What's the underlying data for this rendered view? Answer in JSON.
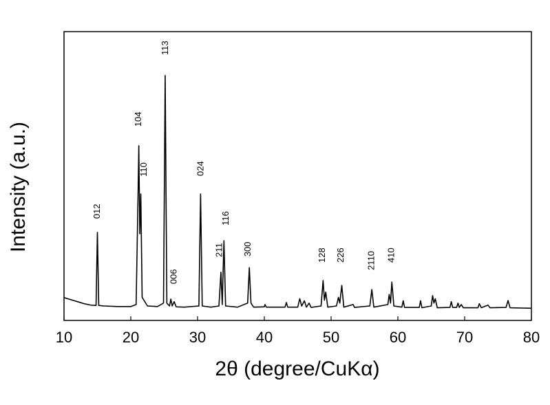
{
  "chart_data": {
    "type": "line",
    "xlabel": "2θ (degree/CuKα)",
    "ylabel": "Intensity (a.u.)",
    "color": "#000000",
    "x": [
      10,
      11,
      12,
      13,
      14,
      14.8,
      15.0,
      15.2,
      16,
      18,
      20,
      20.8,
      21.1,
      21.2,
      21.35,
      21.5,
      21.7,
      22.5,
      24,
      24.9,
      25.15,
      25.4,
      25.8,
      26.0,
      26.2,
      26.5,
      26.8,
      28,
      30.2,
      30.45,
      30.7,
      32,
      33.2,
      33.5,
      33.7,
      33.95,
      34.2,
      36,
      37.5,
      37.75,
      38,
      38.4,
      40,
      40.1,
      40.3,
      43.1,
      43.3,
      43.5,
      45,
      45.3,
      45.6,
      46,
      46.3,
      46.7,
      47,
      48.5,
      48.8,
      49.0,
      49.2,
      49.5,
      50.8,
      51.1,
      51.3,
      51.6,
      51.9,
      53.3,
      53.5,
      55.8,
      56.1,
      56.4,
      58.5,
      58.7,
      58.9,
      59.1,
      59.4,
      60.6,
      60.8,
      61,
      63.2,
      63.4,
      63.6,
      65,
      65.2,
      65.4,
      65.6,
      65.9,
      67.8,
      68,
      68.2,
      68.8,
      69,
      69.2,
      69.5,
      69.8,
      72,
      72.2,
      72.5,
      73.5,
      73.8,
      76.2,
      76.5,
      76.8,
      80
    ],
    "values": [
      7.9,
      7.2,
      6.5,
      5.8,
      5.3,
      5.2,
      30.5,
      5.2,
      5,
      4.8,
      4.8,
      5.5,
      45,
      60.5,
      30,
      43.8,
      8,
      5,
      4.8,
      6,
      84.8,
      6,
      5,
      7.4,
      5,
      6.5,
      4.7,
      4.6,
      5,
      43.8,
      5,
      4.6,
      5,
      16.7,
      5.5,
      27.6,
      5,
      4.6,
      6,
      18.3,
      6,
      4.6,
      4.7,
      5.5,
      4.6,
      4.6,
      6.2,
      4.6,
      4.6,
      7.5,
      5,
      6.8,
      4.6,
      6,
      4.5,
      5,
      13.8,
      7,
      9.8,
      4.6,
      5,
      8,
      6,
      12.1,
      4.6,
      5.5,
      4.5,
      5,
      10.7,
      4.6,
      5.5,
      9,
      6,
      13.3,
      5,
      4.6,
      6.8,
      4.5,
      4.5,
      6.8,
      4.4,
      5,
      8.6,
      6,
      7.5,
      4.4,
      4.5,
      6.5,
      4.5,
      4.5,
      6,
      4.5,
      5.5,
      4.4,
      4.4,
      5.8,
      4.4,
      5.3,
      4.4,
      4.5,
      6.9,
      4.4,
      4.2
    ],
    "xlim": [
      10,
      80
    ],
    "xticks": [
      10,
      20,
      30,
      40,
      50,
      60,
      70,
      80
    ],
    "ylim": [
      0,
      100
    ],
    "annotations": [
      {
        "text": "012",
        "x": 15.0,
        "y": 35.2
      },
      {
        "text": "104",
        "x": 21.2,
        "y": 67.1
      },
      {
        "text": "110",
        "x": 22.0,
        "y": 49.8
      },
      {
        "text": "113",
        "x": 25.2,
        "y": 91.9
      },
      {
        "text": "006",
        "x": 26.5,
        "y": 12.6
      },
      {
        "text": "024",
        "x": 30.5,
        "y": 50.0
      },
      {
        "text": "211",
        "x": 33.3,
        "y": 21.9
      },
      {
        "text": "116",
        "x": 34.3,
        "y": 32.9
      },
      {
        "text": "300",
        "x": 37.6,
        "y": 22.1
      },
      {
        "text": "128",
        "x": 48.7,
        "y": 20.0
      },
      {
        "text": "226",
        "x": 51.5,
        "y": 20.0
      },
      {
        "text": "2110",
        "x": 56.1,
        "y": 17.4
      },
      {
        "text": "410",
        "x": 59.1,
        "y": 20.0
      }
    ]
  }
}
